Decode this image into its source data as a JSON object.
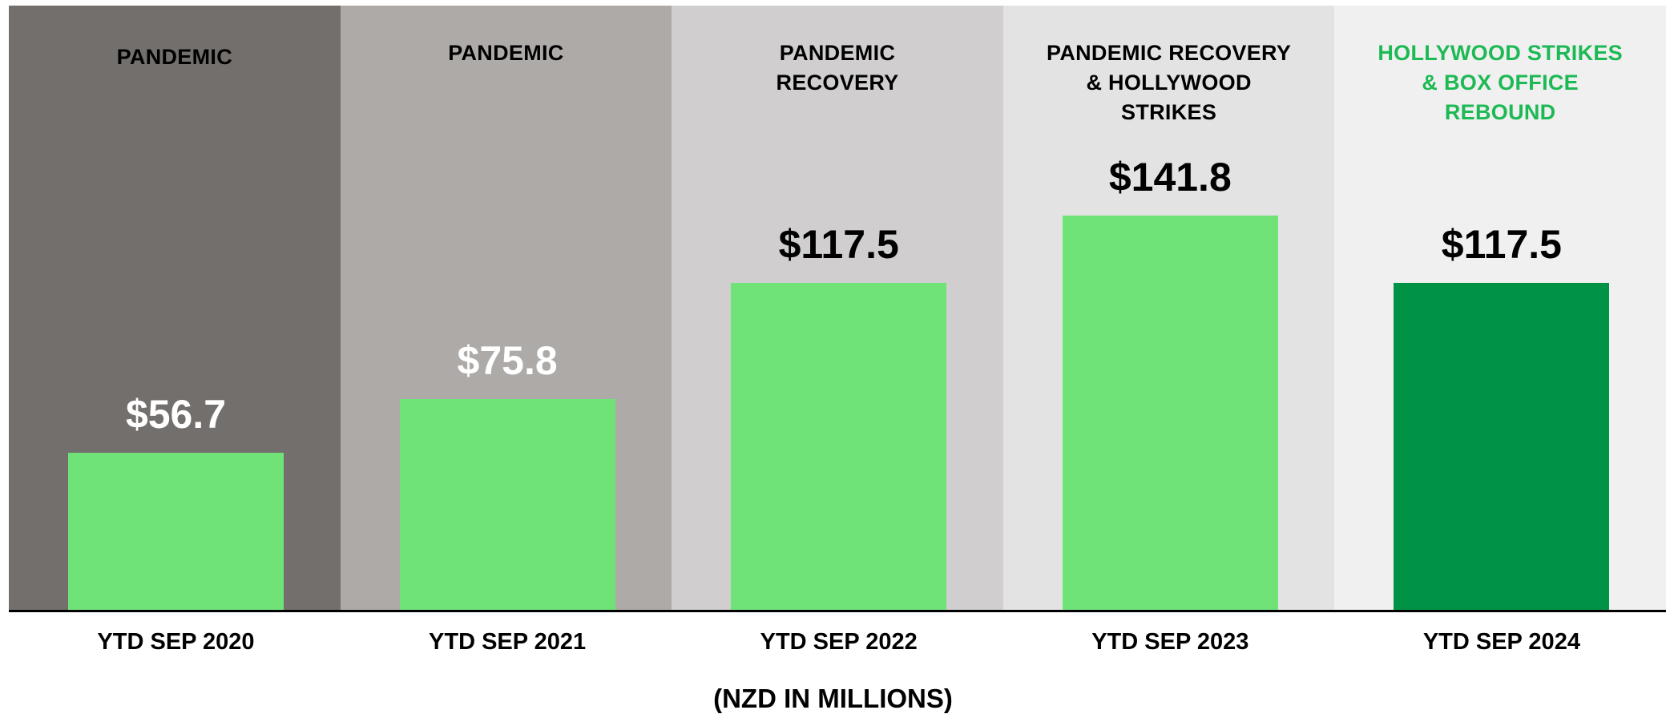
{
  "chart_data": {
    "type": "bar",
    "categories": [
      "YTD SEP 2020",
      "YTD SEP 2021",
      "YTD SEP 2022",
      "YTD SEP 2023",
      "YTD SEP 2024"
    ],
    "values": [
      56.7,
      75.8,
      117.5,
      141.8,
      117.5
    ],
    "value_labels": [
      "$56.7",
      "$75.8",
      "$117.5",
      "$141.8",
      "$117.5"
    ],
    "colors": [
      "#70e378",
      "#70e378",
      "#70e378",
      "#70e378",
      "#009245"
    ],
    "value_label_colors": [
      "#ffffff",
      "#ffffff",
      "#000000",
      "#000000",
      "#000000"
    ],
    "background_colors": [
      "#736f6d",
      "#aeaaa8",
      "#d0cecf",
      "#e3e3e3",
      "#f0f0f0"
    ],
    "annotations": [
      "PANDEMIC",
      "PANDEMIC",
      "PANDEMIC\nRECOVERY",
      "PANDEMIC RECOVERY\n& HOLLYWOOD\nSTRIKES",
      "HOLLYWOOD STRIKES\n& BOX OFFICE\nREBOUND"
    ],
    "annotation_colors": [
      "#000000",
      "#000000",
      "#000000",
      "#000000",
      "#1db954"
    ],
    "xlabel": "(NZD IN MILLIONS)",
    "ylim": [
      0,
      217
    ]
  }
}
